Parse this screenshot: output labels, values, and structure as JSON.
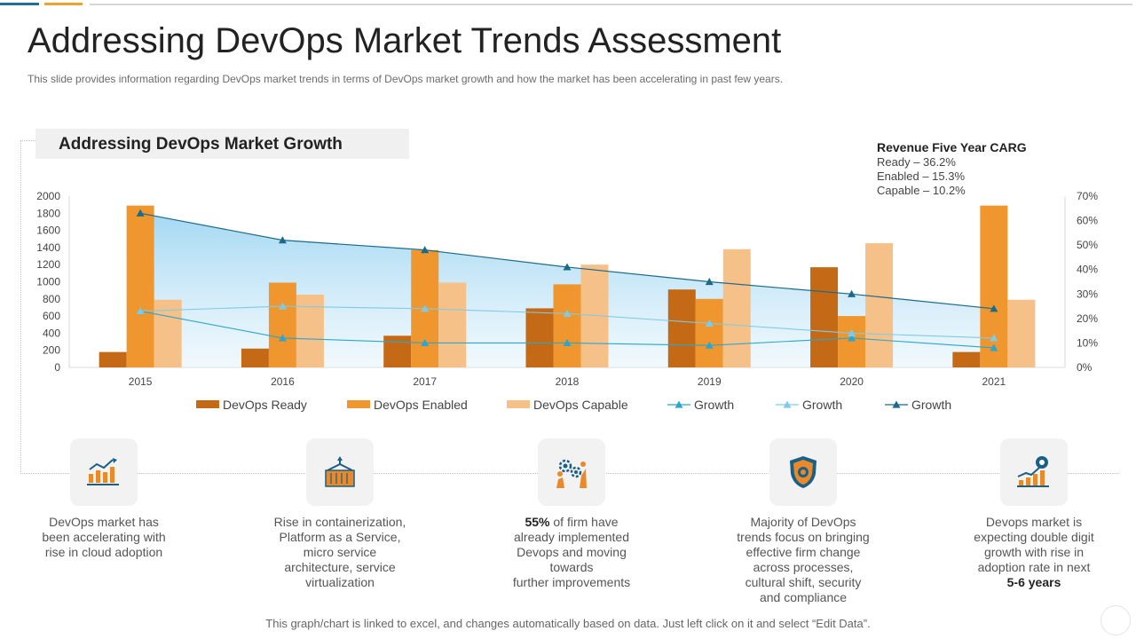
{
  "slide": {
    "title": "Addressing DevOps Market Trends Assessment",
    "subtitle": "This slide provides information regarding DevOps market trends in terms of DevOps market growth and how the market has been accelerating in past few years.",
    "chart_header": "Addressing DevOps Market Growth",
    "footer": "This graph/chart is linked to excel, and changes automatically based on data. Just left click on it and select “Edit Data”."
  },
  "cagr": {
    "title": "Revenue Five Year CARG",
    "lines": [
      "Ready – 36.2%",
      "Enabled – 15.3%",
      "Capable  – 10.2%"
    ]
  },
  "chart_data": {
    "type": "bar",
    "title": "Addressing DevOps Market Growth",
    "categories": [
      "2015",
      "2016",
      "2017",
      "2018",
      "2019",
      "2020",
      "2021"
    ],
    "y_left": {
      "ticks": [
        "0",
        "200",
        "400",
        "600",
        "800",
        "1000",
        "1200",
        "1400",
        "1600",
        "1800",
        "2000"
      ],
      "ylim": [
        0,
        2000
      ]
    },
    "y_right": {
      "ticks": [
        "0%",
        "10%",
        "20%",
        "30%",
        "40%",
        "50%",
        "60%",
        "70%"
      ],
      "ylim": [
        0,
        70
      ]
    },
    "series": [
      {
        "name": "DevOps Ready",
        "kind": "bar",
        "axis": "left",
        "color": "#c46a16",
        "values": [
          180,
          220,
          370,
          690,
          910,
          1170,
          180
        ]
      },
      {
        "name": "DevOps Enabled",
        "kind": "bar",
        "axis": "left",
        "color": "#f0962f",
        "values": [
          1890,
          990,
          1370,
          970,
          800,
          600,
          1890
        ]
      },
      {
        "name": "DevOps Capable",
        "kind": "bar",
        "axis": "left",
        "color": "#f6c089",
        "values": [
          790,
          850,
          990,
          1200,
          1380,
          1450,
          790
        ]
      },
      {
        "name": "Growth",
        "kind": "line",
        "axis": "right",
        "color": "#2aa6cf",
        "values": [
          23,
          12,
          10,
          10,
          9,
          12,
          8
        ]
      },
      {
        "name": "Growth",
        "kind": "line",
        "axis": "right",
        "color": "#7fcbe6",
        "values": [
          23,
          25,
          24,
          22,
          18,
          14,
          12
        ]
      },
      {
        "name": "Growth",
        "kind": "area-line",
        "axis": "right",
        "color": "#1a6a8a",
        "values": [
          63,
          52,
          48,
          41,
          35,
          30,
          24
        ]
      }
    ]
  },
  "features": [
    {
      "icon": "growth-chart-icon",
      "lines": [
        "DevOps market has",
        "been accelerating with",
        "rise in cloud adoption"
      ],
      "bold": ""
    },
    {
      "icon": "container-icon",
      "lines": [
        "Rise in containerization,",
        "Platform as a Service,",
        "micro service",
        "architecture, service",
        "virtualization"
      ],
      "bold": ""
    },
    {
      "icon": "gears-people-icon",
      "bold": "55%",
      "first_rest": " of firm have",
      "lines": [
        "already implemented",
        "Devops and moving",
        "towards",
        "further improvements"
      ]
    },
    {
      "icon": "shield-icon",
      "lines": [
        "Majority of DevOps",
        "trends focus on bringing",
        "effective firm change",
        "across processes,",
        "cultural shift, security",
        "and compliance"
      ],
      "bold": ""
    },
    {
      "icon": "target-growth-icon",
      "lines": [
        "Devops market is",
        "expecting double digit",
        "growth with rise in",
        "adoption rate in next"
      ],
      "bold_last": "5-6 years"
    }
  ],
  "colors": {
    "ready": "#c46a16",
    "enabled": "#f0962f",
    "capable": "#f6c089",
    "icon_orange": "#e8892b",
    "icon_blue": "#1a5f86"
  }
}
